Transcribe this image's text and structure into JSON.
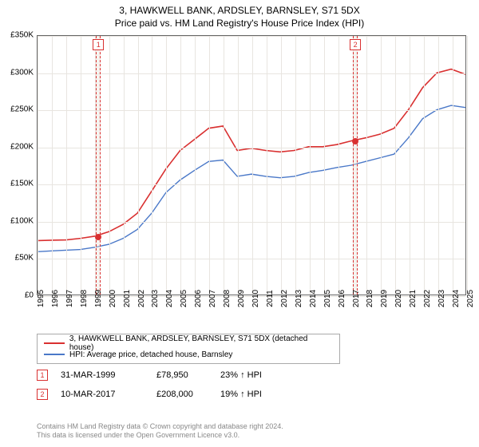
{
  "title": {
    "line1": "3, HAWKWELL BANK, ARDSLEY, BARNSLEY, S71 5DX",
    "line2": "Price paid vs. HM Land Registry's House Price Index (HPI)"
  },
  "chart": {
    "type": "line",
    "background_color": "#ffffff",
    "grid_color": "#e8e5e0",
    "border_color": "#666666",
    "y": {
      "min": 0,
      "max": 350000,
      "step": 50000,
      "ticks": [
        "£0",
        "£50K",
        "£100K",
        "£150K",
        "£200K",
        "£250K",
        "£300K",
        "£350K"
      ],
      "label_fontsize": 10,
      "label_color": "#000000"
    },
    "x": {
      "min": 1995,
      "max": 2025,
      "step": 1,
      "ticks": [
        "1995",
        "1996",
        "1997",
        "1998",
        "1999",
        "2000",
        "2001",
        "2002",
        "2003",
        "2004",
        "2005",
        "2006",
        "2007",
        "2008",
        "2009",
        "2010",
        "2011",
        "2012",
        "2013",
        "2014",
        "2015",
        "2016",
        "2017",
        "2018",
        "2019",
        "2020",
        "2021",
        "2022",
        "2023",
        "2024",
        "2025"
      ],
      "label_fontsize": 10,
      "label_color": "#000000",
      "label_rotation": -90
    },
    "series": [
      {
        "id": "property",
        "label": "3, HAWKWELL BANK, ARDSLEY, BARNSLEY, S71 5DX (detached house)",
        "color": "#d93030",
        "line_width": 1.6,
        "data": [
          [
            1995,
            73000
          ],
          [
            1996,
            73500
          ],
          [
            1997,
            74000
          ],
          [
            1998,
            76000
          ],
          [
            1999,
            78950
          ],
          [
            2000,
            85000
          ],
          [
            2001,
            95000
          ],
          [
            2002,
            110000
          ],
          [
            2003,
            140000
          ],
          [
            2004,
            170000
          ],
          [
            2005,
            195000
          ],
          [
            2006,
            210000
          ],
          [
            2007,
            225000
          ],
          [
            2008,
            228000
          ],
          [
            2009,
            195000
          ],
          [
            2010,
            198000
          ],
          [
            2011,
            195000
          ],
          [
            2012,
            193000
          ],
          [
            2013,
            195000
          ],
          [
            2014,
            200000
          ],
          [
            2015,
            200000
          ],
          [
            2016,
            203000
          ],
          [
            2017,
            208000
          ],
          [
            2018,
            212000
          ],
          [
            2019,
            217000
          ],
          [
            2020,
            225000
          ],
          [
            2021,
            250000
          ],
          [
            2022,
            280000
          ],
          [
            2023,
            300000
          ],
          [
            2024,
            305000
          ],
          [
            2025,
            298000
          ]
        ]
      },
      {
        "id": "hpi",
        "label": "HPI: Average price, detached house, Barnsley",
        "color": "#4a78c8",
        "line_width": 1.4,
        "data": [
          [
            1995,
            58000
          ],
          [
            1996,
            59000
          ],
          [
            1997,
            60000
          ],
          [
            1998,
            61000
          ],
          [
            1999,
            64000
          ],
          [
            2000,
            68000
          ],
          [
            2001,
            76000
          ],
          [
            2002,
            88000
          ],
          [
            2003,
            110000
          ],
          [
            2004,
            138000
          ],
          [
            2005,
            155000
          ],
          [
            2006,
            168000
          ],
          [
            2007,
            180000
          ],
          [
            2008,
            182000
          ],
          [
            2009,
            160000
          ],
          [
            2010,
            163000
          ],
          [
            2011,
            160000
          ],
          [
            2012,
            158000
          ],
          [
            2013,
            160000
          ],
          [
            2014,
            165000
          ],
          [
            2015,
            168000
          ],
          [
            2016,
            172000
          ],
          [
            2017,
            175000
          ],
          [
            2018,
            180000
          ],
          [
            2019,
            185000
          ],
          [
            2020,
            190000
          ],
          [
            2021,
            212000
          ],
          [
            2022,
            238000
          ],
          [
            2023,
            250000
          ],
          [
            2024,
            256000
          ],
          [
            2025,
            253000
          ]
        ]
      }
    ],
    "marker_band_color": "rgba(230,225,215,0.4)",
    "marker_dash_color": "#d93030",
    "sale_markers": [
      {
        "num": "1",
        "year": 1999.25,
        "price": 78950,
        "dot_color": "#d93030"
      },
      {
        "num": "2",
        "year": 2017.2,
        "price": 208000,
        "dot_color": "#d93030"
      }
    ]
  },
  "legend": {
    "border_color": "#aaaaaa",
    "rows": [
      {
        "color": "#d93030",
        "label": "3, HAWKWELL BANK, ARDSLEY, BARNSLEY, S71 5DX (detached house)"
      },
      {
        "color": "#4a78c8",
        "label": "HPI: Average price, detached house, Barnsley"
      }
    ]
  },
  "sales": [
    {
      "num": "1",
      "date": "31-MAR-1999",
      "price": "£78,950",
      "diff": "23% ↑ HPI"
    },
    {
      "num": "2",
      "date": "10-MAR-2017",
      "price": "£208,000",
      "diff": "19% ↑ HPI"
    }
  ],
  "footer": {
    "line1": "Contains HM Land Registry data © Crown copyright and database right 2024.",
    "line2": "This data is licensed under the Open Government Licence v3.0."
  }
}
